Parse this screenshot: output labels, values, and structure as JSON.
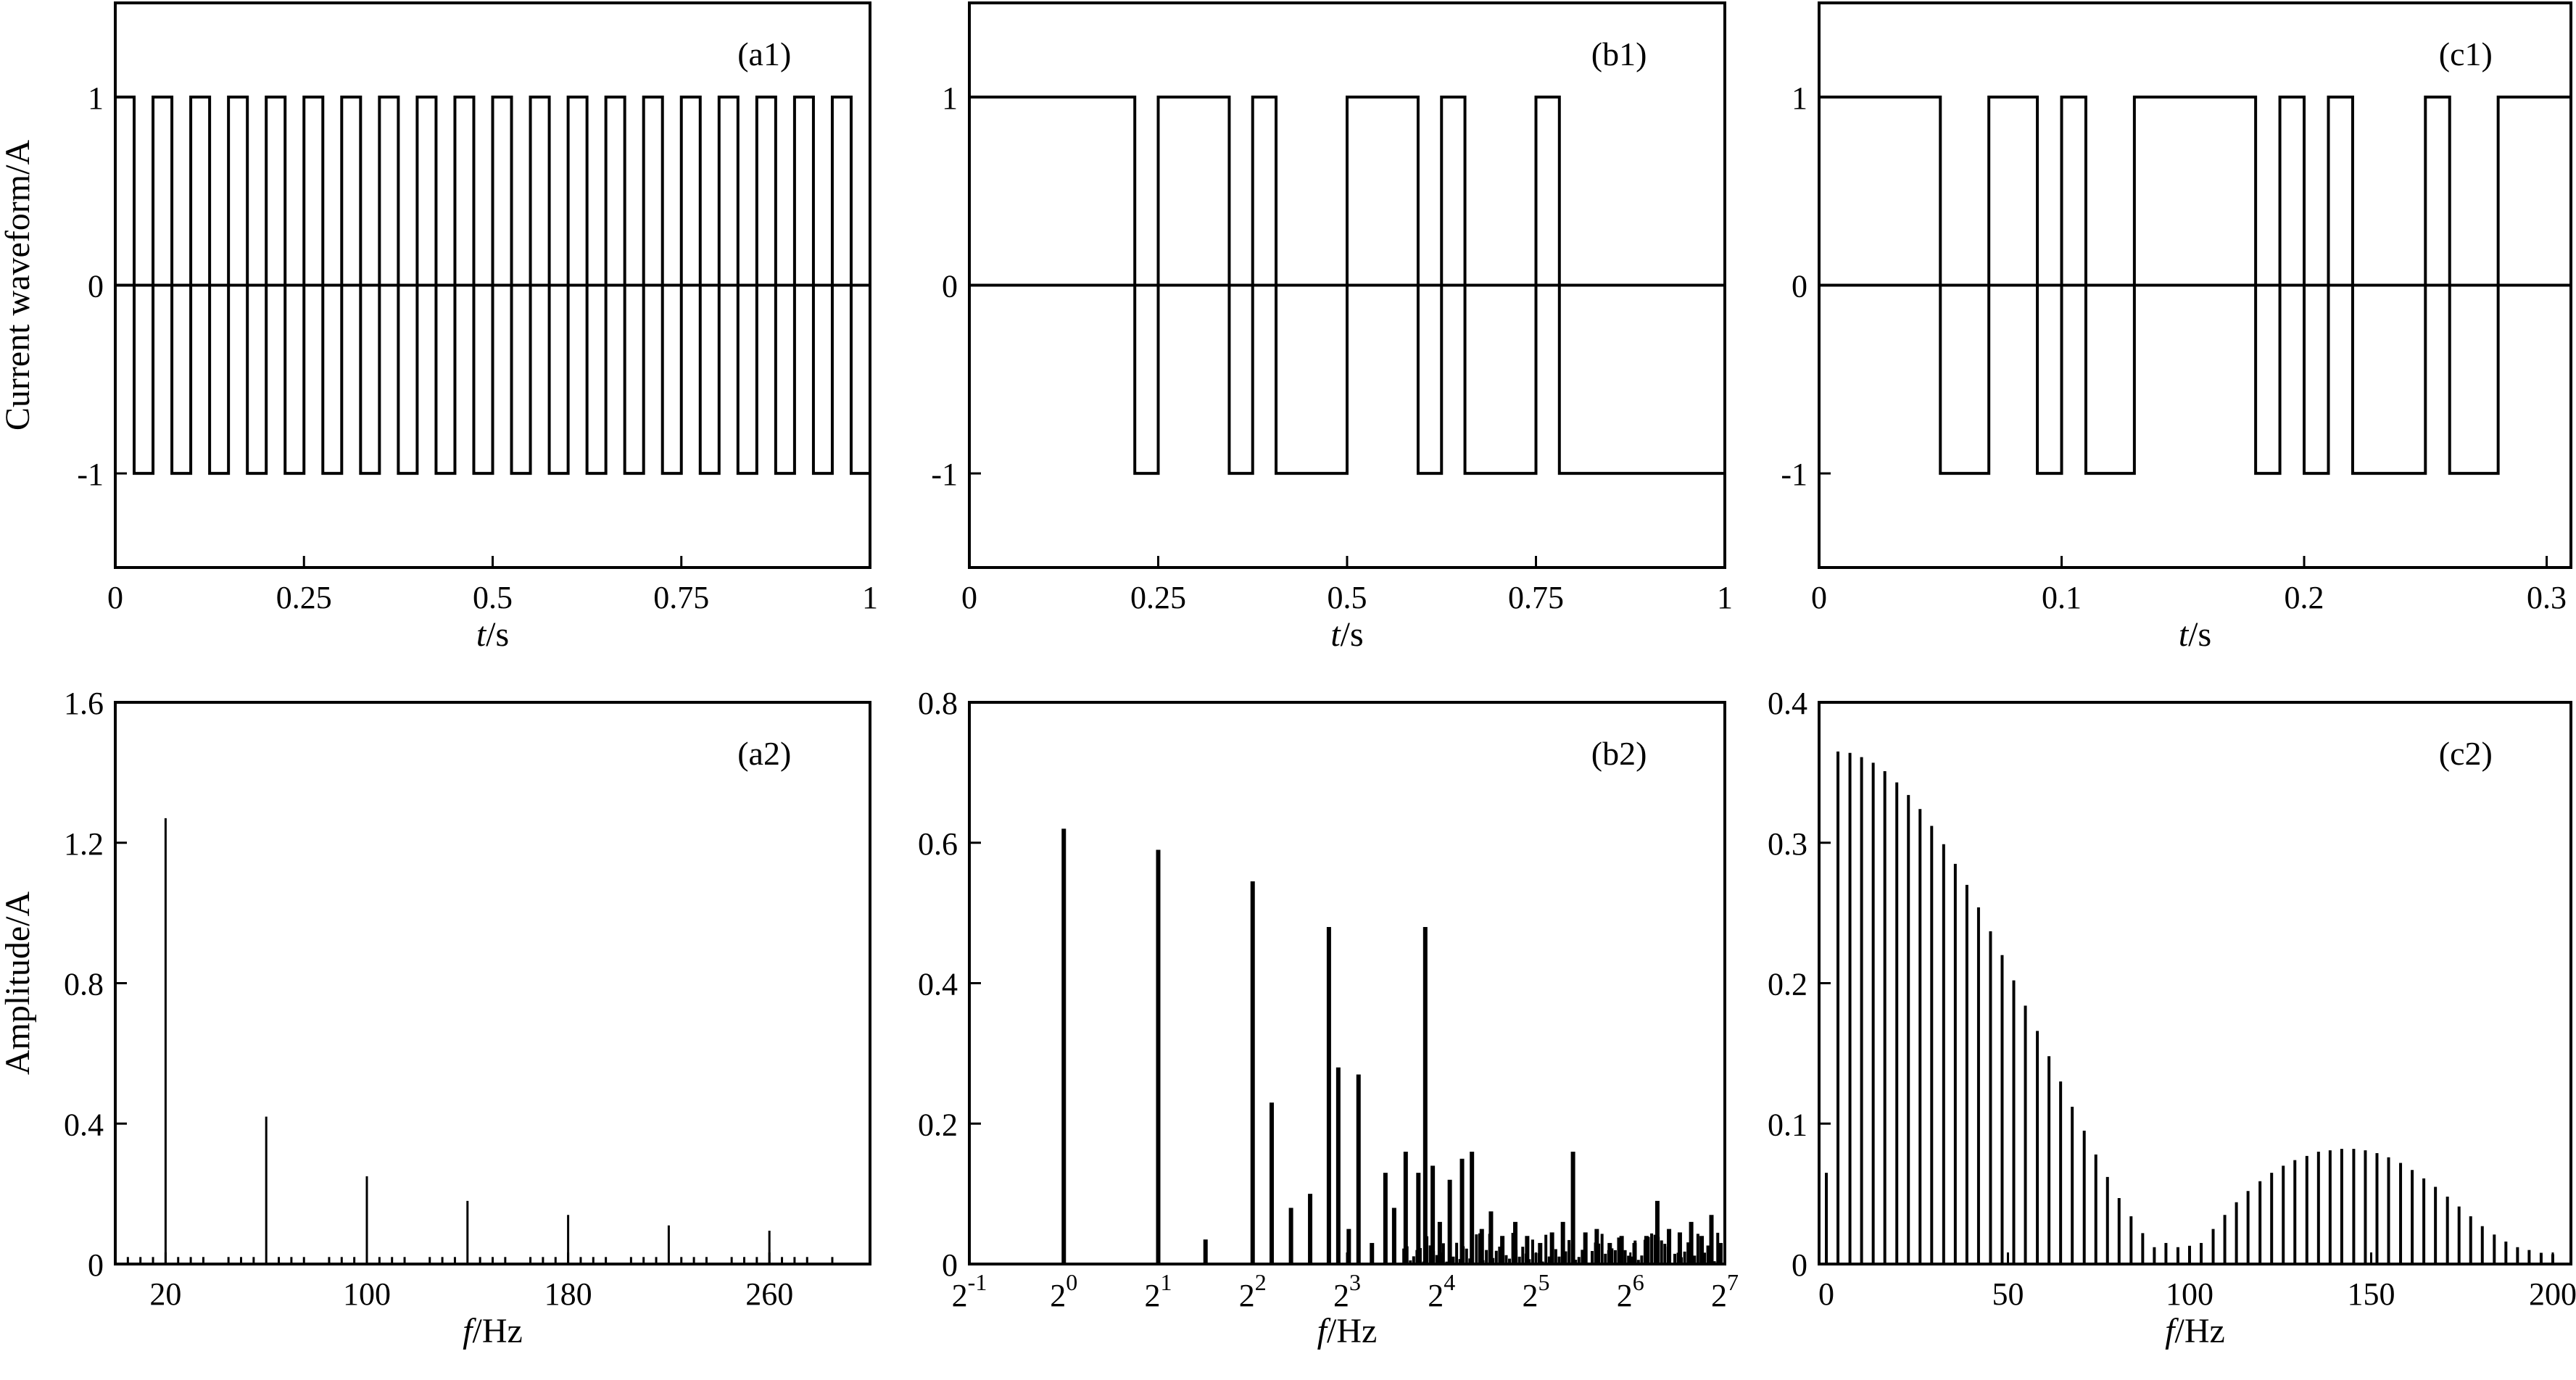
{
  "chart_data": [
    {
      "id": "a1",
      "type": "line",
      "panel_label": "(a1)",
      "xlabel_var": "t",
      "xlabel_unit": "/s",
      "ylabel": "Current waveform/A",
      "xlim": [
        0,
        1
      ],
      "ylim": [
        -1.5,
        1.5
      ],
      "x_ticks": [
        0,
        0.25,
        0.5,
        0.75,
        1
      ],
      "x_tick_labels": [
        "0",
        "0.25",
        "0.5",
        "0.75",
        "1"
      ],
      "y_ticks": [
        -1,
        0,
        1
      ],
      "y_tick_labels": [
        "-1",
        "0",
        "1"
      ],
      "baseline": 0,
      "high": 1,
      "low": -1,
      "period": 0.05,
      "high_duration": 0.025,
      "n_cycles": 20
    },
    {
      "id": "b1",
      "type": "line",
      "panel_label": "(b1)",
      "xlabel_var": "t",
      "xlabel_unit": "/s",
      "xlim": [
        0,
        1
      ],
      "ylim": [
        -1.5,
        1.5
      ],
      "x_ticks": [
        0,
        0.25,
        0.5,
        0.75,
        1
      ],
      "x_tick_labels": [
        "0",
        "0.25",
        "0.5",
        "0.75",
        "1"
      ],
      "y_ticks": [
        -1,
        0,
        1
      ],
      "y_tick_labels": [
        "-1",
        "0",
        "1"
      ],
      "baseline": 0,
      "high": 1,
      "low": -1,
      "transitions": [
        0.219,
        0.25,
        0.344,
        0.375,
        0.406,
        0.5,
        0.594,
        0.625,
        0.656,
        0.75,
        0.781
      ],
      "start_level": 1,
      "end_x": 1
    },
    {
      "id": "c1",
      "type": "line",
      "panel_label": "(c1)",
      "xlabel_var": "t",
      "xlabel_unit": "/s",
      "xlim": [
        0,
        0.31
      ],
      "ylim": [
        -1.5,
        1.5
      ],
      "x_ticks": [
        0,
        0.1,
        0.2,
        0.3
      ],
      "x_tick_labels": [
        "0",
        "0.1",
        "0.2",
        "0.3"
      ],
      "y_ticks": [
        -1,
        0,
        1
      ],
      "y_tick_labels": [
        "-1",
        "0",
        "1"
      ],
      "baseline": 0,
      "high": 1,
      "low": -1,
      "transitions": [
        0.05,
        0.07,
        0.09,
        0.1,
        0.11,
        0.13,
        0.18,
        0.19,
        0.2,
        0.21,
        0.22,
        0.25,
        0.26,
        0.28
      ],
      "start_level": 1,
      "end_x": 0.31
    },
    {
      "id": "a2",
      "type": "bar",
      "panel_label": "(a2)",
      "xlabel_var": "f",
      "xlabel_unit": "/Hz",
      "ylabel": "Amplitude/A",
      "xlim": [
        0,
        300
      ],
      "ylim": [
        0,
        1.6
      ],
      "x_ticks": [
        20,
        100,
        180,
        260
      ],
      "x_tick_labels": [
        "20",
        "100",
        "180",
        "260"
      ],
      "y_ticks": [
        0,
        0.4,
        0.8,
        1.2,
        1.6
      ],
      "y_tick_labels": [
        "0",
        "0.4",
        "0.8",
        "1.2",
        "1.6"
      ],
      "x": [
        20,
        60,
        100,
        140,
        180,
        220,
        260
      ],
      "values": [
        1.27,
        0.42,
        0.25,
        0.18,
        0.14,
        0.11,
        0.095
      ],
      "small_x": [
        5,
        10,
        15,
        25,
        30,
        35,
        45,
        50,
        55,
        65,
        70,
        75,
        85,
        90,
        95,
        105,
        110,
        115,
        125,
        130,
        135,
        145,
        150,
        155,
        165,
        170,
        175,
        185,
        190,
        195,
        205,
        210,
        215,
        225,
        230,
        235,
        245,
        250,
        255,
        265,
        270,
        275,
        285
      ],
      "small_value": 0.02
    },
    {
      "id": "b2",
      "type": "bar",
      "panel_label": "(b2)",
      "xlabel_var": "f",
      "xlabel_unit": "/Hz",
      "x_scale": "log2",
      "xlim_log2": [
        -1,
        7
      ],
      "ylim": [
        0,
        0.8
      ],
      "x_tick_exponents": [
        "-1",
        "0",
        "1",
        "2",
        "3",
        "4",
        "5",
        "6",
        "7"
      ],
      "x_tick_base": "2",
      "y_ticks": [
        0,
        0.2,
        0.4,
        0.6,
        0.8
      ],
      "y_tick_labels": [
        "0",
        "0.2",
        "0.4",
        "0.6",
        "0.8"
      ],
      "x": [
        1,
        2,
        2.83,
        4,
        4.6,
        5.3,
        6.1,
        7,
        7.5,
        8.1,
        8.7,
        9.6,
        10.6,
        11.3,
        12.3,
        13.5,
        14.2,
        15,
        15.8,
        17,
        18.6,
        20,
        21.5,
        23,
        25,
        27.5,
        30,
        33,
        36,
        39,
        42,
        46,
        50,
        55,
        60,
        66,
        72,
        78,
        85,
        92,
        100,
        108,
        116,
        124
      ],
      "values": [
        0.62,
        0.59,
        0.035,
        0.545,
        0.23,
        0.08,
        0.1,
        0.48,
        0.28,
        0.05,
        0.27,
        0.03,
        0.13,
        0.08,
        0.16,
        0.13,
        0.48,
        0.14,
        0.06,
        0.12,
        0.15,
        0.16,
        0.05,
        0.075,
        0.04,
        0.06,
        0.04,
        0.03,
        0.045,
        0.06,
        0.16,
        0.045,
        0.05,
        0.03,
        0.04,
        0.03,
        0.04,
        0.09,
        0.05,
        0.045,
        0.06,
        0.04,
        0.07,
        0.03
      ],
      "noise_floor_max": 0.045
    },
    {
      "id": "c2",
      "type": "bar",
      "panel_label": "(c2)",
      "xlabel_var": "f",
      "xlabel_unit": "/Hz",
      "xlim": [
        -2,
        205
      ],
      "ylim": [
        0,
        0.4
      ],
      "x_ticks": [
        0,
        50,
        100,
        150,
        200
      ],
      "x_tick_labels": [
        "0",
        "50",
        "100",
        "150",
        "200"
      ],
      "y_ticks": [
        0,
        0.1,
        0.2,
        0.3,
        0.4
      ],
      "y_tick_labels": [
        "0",
        "0.1",
        "0.2",
        "0.3",
        "0.4"
      ],
      "x": [
        0,
        3.2,
        6.5,
        9.7,
        12.9,
        16.1,
        19.4,
        22.6,
        25.8,
        29,
        32.3,
        35.5,
        38.7,
        41.9,
        45.2,
        48.4,
        51.6,
        54.8,
        58.1,
        61.3,
        64.5,
        67.7,
        71,
        74.2,
        77.4,
        80.6,
        83.9,
        87.1,
        90.3,
        93.5,
        96.8,
        100,
        103.2,
        106.5,
        109.7,
        112.9,
        116.1,
        119.4,
        122.6,
        125.8,
        129,
        132.3,
        135.5,
        138.7,
        141.9,
        145.2,
        148.4,
        151.6,
        154.8,
        158.1,
        161.3,
        164.5,
        167.7,
        171,
        174.2,
        177.4,
        180.6,
        183.9,
        187.1,
        190.3,
        193.5,
        196.8,
        200
      ],
      "values": [
        0.065,
        0.365,
        0.364,
        0.361,
        0.357,
        0.351,
        0.343,
        0.334,
        0.324,
        0.312,
        0.299,
        0.285,
        0.27,
        0.254,
        0.237,
        0.22,
        0.202,
        0.184,
        0.166,
        0.148,
        0.13,
        0.112,
        0.095,
        0.078,
        0.062,
        0.047,
        0.034,
        0.022,
        0.012,
        0.015,
        0.012,
        0.013,
        0.015,
        0.025,
        0.035,
        0.044,
        0.052,
        0.059,
        0.065,
        0.07,
        0.074,
        0.077,
        0.08,
        0.081,
        0.082,
        0.082,
        0.081,
        0.079,
        0.076,
        0.072,
        0.067,
        0.061,
        0.055,
        0.048,
        0.041,
        0.034,
        0.027,
        0.021,
        0.016,
        0.012,
        0.01,
        0.008,
        0.007
      ]
    }
  ]
}
